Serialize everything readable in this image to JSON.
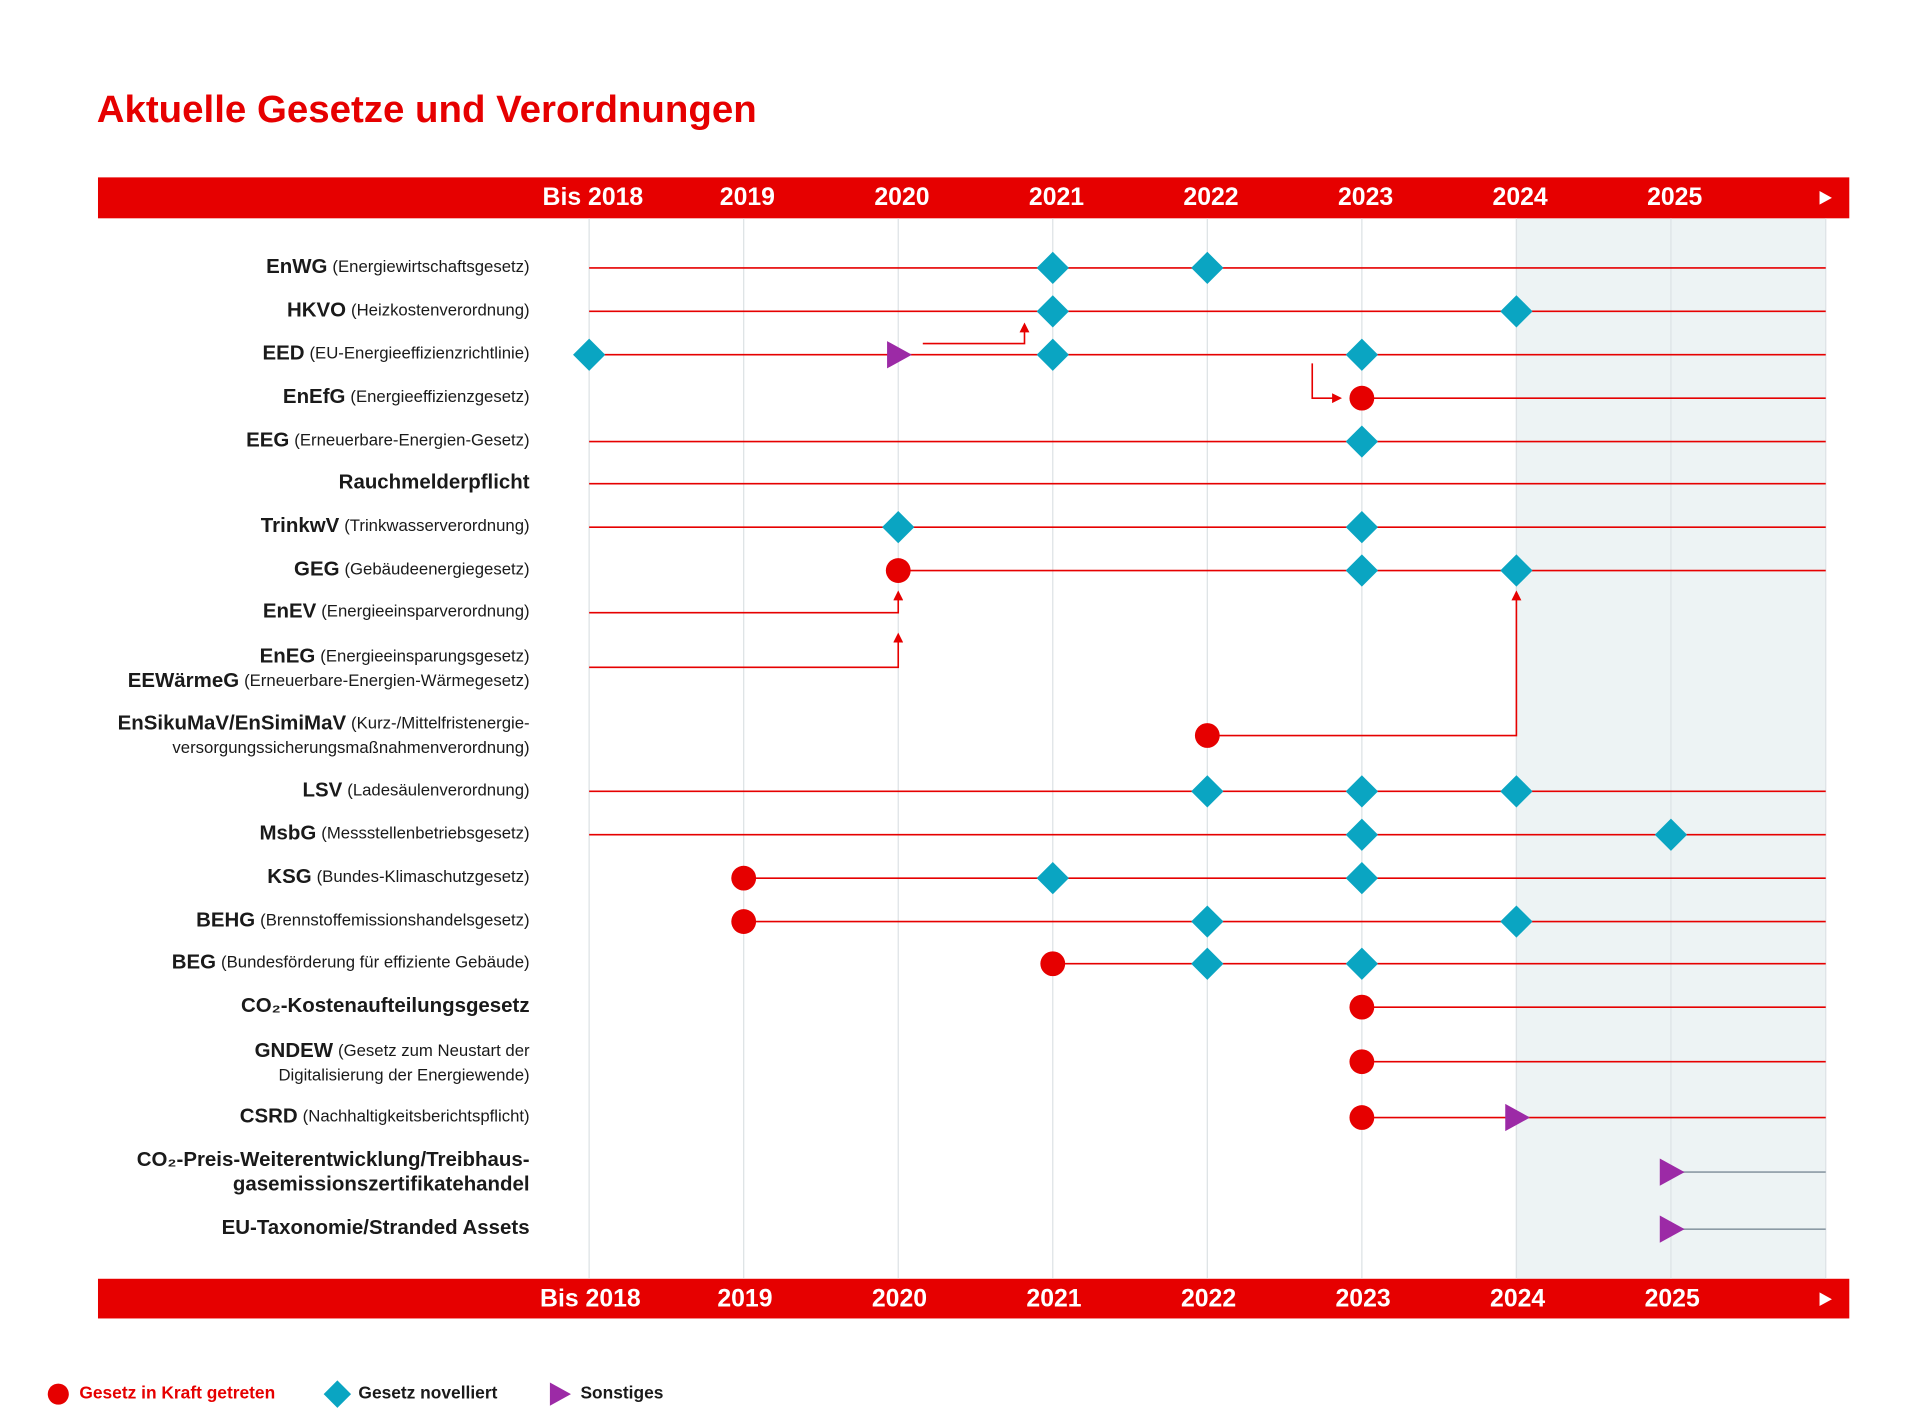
{
  "title": "Aktuelle Gesetze und Verordnungen",
  "columns": [
    "Bis 2018",
    "2019",
    "2020",
    "2021",
    "2022",
    "2023",
    "2024",
    "2025"
  ],
  "rows": [
    {
      "lines": [
        {
          "abbr": "EnWG",
          "desc": "(Energiewirtschaftsgesetz)"
        }
      ],
      "events": [
        {
          "year": "2021",
          "shape": "diamond"
        },
        {
          "year": "2022",
          "shape": "diamond"
        }
      ]
    },
    {
      "lines": [
        {
          "abbr": "HKVO",
          "desc": "(Heizkostenverordnung)"
        }
      ],
      "events": [
        {
          "year": "2021",
          "shape": "diamond"
        },
        {
          "year": "2024",
          "shape": "diamond"
        }
      ]
    },
    {
      "lines": [
        {
          "abbr": "EED",
          "desc": "(EU-Energieeffizienzrichtlinie)"
        }
      ],
      "events": [
        {
          "year": "Bis 2018",
          "shape": "diamond"
        },
        {
          "year": "2020",
          "shape": "triangle"
        },
        {
          "year": "2021",
          "shape": "diamond"
        },
        {
          "year": "2023",
          "shape": "diamond"
        }
      ]
    },
    {
      "lines": [
        {
          "abbr": "EnEfG",
          "desc": "(Energieeffizienzgesetz)"
        }
      ],
      "events": [
        {
          "year": "2023",
          "shape": "circle"
        }
      ]
    },
    {
      "lines": [
        {
          "abbr": "EEG",
          "desc": "(Erneuerbare-Energien-Gesetz)"
        }
      ],
      "events": [
        {
          "year": "2023",
          "shape": "diamond"
        }
      ]
    },
    {
      "lines": [
        {
          "abbr": "Rauchmelderpflicht"
        }
      ],
      "events": []
    },
    {
      "lines": [
        {
          "abbr": "TrinkwV",
          "desc": "(Trinkwasserverordnung)"
        }
      ],
      "events": [
        {
          "year": "2020",
          "shape": "diamond"
        },
        {
          "year": "2023",
          "shape": "diamond"
        }
      ]
    },
    {
      "lines": [
        {
          "abbr": "GEG",
          "desc": "(Gebäudeenergiegesetz)"
        }
      ],
      "events": [
        {
          "year": "2020",
          "shape": "circle"
        },
        {
          "year": "2023",
          "shape": "diamond"
        },
        {
          "year": "2024",
          "shape": "diamond"
        }
      ]
    },
    {
      "lines": [
        {
          "abbr": "EnEV",
          "desc": "(Energieeinsparverordnung)"
        }
      ],
      "events": []
    },
    {
      "lines": [
        {
          "abbr": "EnEG",
          "desc": "(Energieeinsparungsgesetz)"
        },
        {
          "abbr": "EEWärmeG",
          "desc": "(Erneuerbare-Energien-Wärmegesetz)"
        }
      ],
      "events": []
    },
    {
      "lines": [
        {
          "abbr": "EnSikuMaV/EnSimiMaV",
          "desc": "(Kurz-/Mittelfristenergie-"
        },
        {
          "desc": "versorgungssicherungsmaßnahmenverordnung)"
        }
      ],
      "events": [
        {
          "year": "2022",
          "shape": "circle"
        }
      ]
    },
    {
      "lines": [
        {
          "abbr": "LSV",
          "desc": "(Ladesäulenverordnung)"
        }
      ],
      "events": [
        {
          "year": "2022",
          "shape": "diamond"
        },
        {
          "year": "2023",
          "shape": "diamond"
        },
        {
          "year": "2024",
          "shape": "diamond"
        }
      ]
    },
    {
      "lines": [
        {
          "abbr": "MsbG",
          "desc": "(Messstellenbetriebsgesetz)"
        }
      ],
      "events": [
        {
          "year": "2023",
          "shape": "diamond"
        },
        {
          "year": "2025",
          "shape": "diamond"
        }
      ]
    },
    {
      "lines": [
        {
          "abbr": "KSG",
          "desc": "(Bundes-Klimaschutzgesetz)"
        }
      ],
      "events": [
        {
          "year": "2019",
          "shape": "circle"
        },
        {
          "year": "2021",
          "shape": "diamond"
        },
        {
          "year": "2023",
          "shape": "diamond"
        }
      ]
    },
    {
      "lines": [
        {
          "abbr": "BEHG",
          "desc": "(Brennstoffemissionshandelsgesetz)"
        }
      ],
      "events": [
        {
          "year": "2019",
          "shape": "circle"
        },
        {
          "year": "2022",
          "shape": "diamond"
        },
        {
          "year": "2024",
          "shape": "diamond"
        }
      ]
    },
    {
      "lines": [
        {
          "abbr": "BEG",
          "desc": "(Bundesförderung für effiziente Gebäude)"
        }
      ],
      "events": [
        {
          "year": "2021",
          "shape": "circle"
        },
        {
          "year": "2022",
          "shape": "diamond"
        },
        {
          "year": "2023",
          "shape": "diamond"
        }
      ]
    },
    {
      "lines": [
        {
          "abbr": "CO₂-Kostenaufteilungsgesetz"
        }
      ],
      "events": [
        {
          "year": "2023",
          "shape": "circle"
        }
      ]
    },
    {
      "lines": [
        {
          "abbr": "GNDEW",
          "desc": "(Gesetz zum Neustart der"
        },
        {
          "desc": "Digitalisierung der Energiewende)"
        }
      ],
      "events": [
        {
          "year": "2023",
          "shape": "circle"
        }
      ]
    },
    {
      "lines": [
        {
          "abbr": "CSRD",
          "desc": "(Nachhaltigkeitsberichtspflicht)"
        }
      ],
      "events": [
        {
          "year": "2023",
          "shape": "circle"
        },
        {
          "year": "2024",
          "shape": "triangle"
        }
      ]
    },
    {
      "lines": [
        {
          "abbr": "CO₂-Preis-Weiterentwicklung/Treibhaus-"
        },
        {
          "abbr": "gasemissionszertifikatehandel"
        }
      ],
      "events": [
        {
          "year": "2025",
          "shape": "triangle"
        }
      ]
    },
    {
      "lines": [
        {
          "abbr": "EU-Taxonomie/Stranded Assets"
        }
      ],
      "events": [
        {
          "year": "2025",
          "shape": "triangle"
        }
      ]
    }
  ],
  "legend": [
    {
      "shape": "circle",
      "label": "Gesetz in Kraft getreten"
    },
    {
      "shape": "diamond",
      "label": "Gesetz novelliert"
    },
    {
      "shape": "triangle",
      "label": "Sonstiges"
    }
  ]
}
